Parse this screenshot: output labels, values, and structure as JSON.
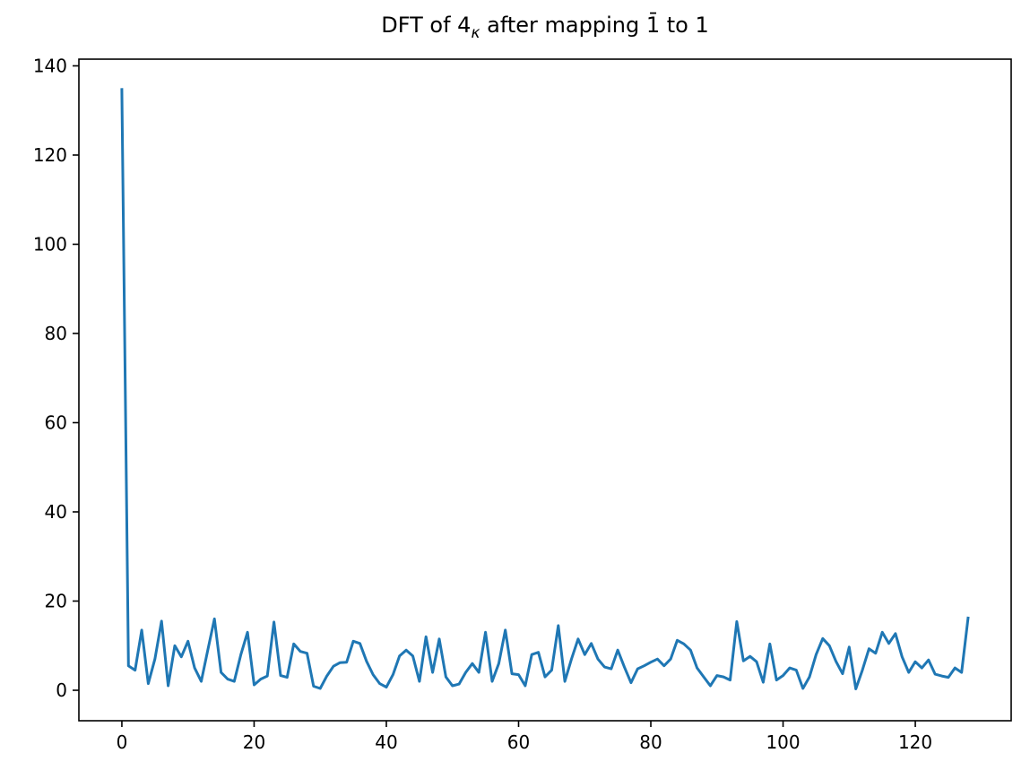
{
  "figure": {
    "background_color": "#ffffff",
    "title_parts": {
      "prefix": "DFT of 4",
      "subscript": "κ",
      "suffix": " after mapping 1̄ to 1"
    }
  },
  "chart_data": {
    "type": "line",
    "title": "DFT of 4_κ after mapping 1̄ to 1",
    "xlabel": "",
    "ylabel": "",
    "x_start": 0,
    "x_step": 1,
    "n_points": 129,
    "values": [
      135,
      5.5,
      4.5,
      13.5,
      1.5,
      7,
      15.5,
      1,
      10,
      7.5,
      11,
      5,
      2,
      9,
      16,
      4,
      2.5,
      2,
      8,
      13,
      1.2,
      2.5,
      3.2,
      15.3,
      3.3,
      2.9,
      10.4,
      8.7,
      8.3,
      0.9,
      0.4,
      3.2,
      5.4,
      6.2,
      6.3,
      11,
      10.5,
      6.5,
      3.5,
      1.5,
      0.7,
      3.5,
      7.7,
      9,
      7.7,
      2,
      12,
      4,
      11.5,
      3,
      1,
      1.4,
      4,
      6,
      4,
      13,
      2,
      6,
      13.5,
      3.7,
      3.5,
      1,
      8,
      8.5,
      3,
      4.5,
      14.5,
      2,
      7,
      11.5,
      8,
      10.5,
      7,
      5.2,
      4.8,
      9,
      5.2,
      1.7,
      4.8,
      5.5,
      6.3,
      7,
      5.5,
      7,
      11.2,
      10.4,
      9,
      5,
      3,
      1,
      3.3,
      3,
      2.3,
      15.4,
      6.6,
      7.6,
      6.4,
      1.8,
      10.4,
      2.3,
      3.3,
      5,
      4.5,
      0.4,
      3,
      8,
      11.6,
      10,
      6.5,
      3.7,
      9.7,
      0.3,
      4.5,
      9.3,
      8.3,
      13,
      10.5,
      12.7,
      7.5,
      4,
      6.4,
      5,
      6.8,
      3.6,
      3.2,
      2.9,
      5,
      4,
      16.5
    ],
    "xticks": [
      0,
      20,
      40,
      60,
      80,
      100,
      120
    ],
    "yticks": [
      0,
      20,
      40,
      60,
      80,
      100,
      120,
      140
    ],
    "xlim": [
      -6.5,
      134.5
    ],
    "ylim": [
      -6.83,
      141.5
    ],
    "grid": false,
    "legend": null,
    "line_color": "#1f77b4",
    "line_width": 3,
    "axis_color": "#000000"
  }
}
